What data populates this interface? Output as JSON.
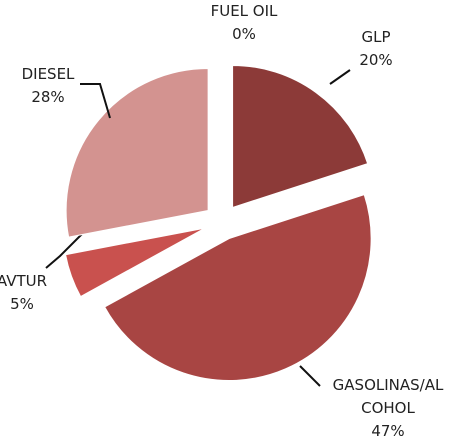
{
  "chart_data": {
    "type": "pie",
    "categories": [
      "GLP",
      "GASOLINAS/ALCOHOL",
      "AVTUR",
      "DIESEL",
      "FUEL OIL"
    ],
    "values": [
      20,
      47,
      5,
      28,
      0
    ],
    "value_labels": [
      "20%",
      "47%",
      "5%",
      "28%",
      "0%"
    ],
    "colors": [
      "#8c3a38",
      "#a84543",
      "#c9514e",
      "#d39390",
      "#e0b0ae"
    ]
  }
}
